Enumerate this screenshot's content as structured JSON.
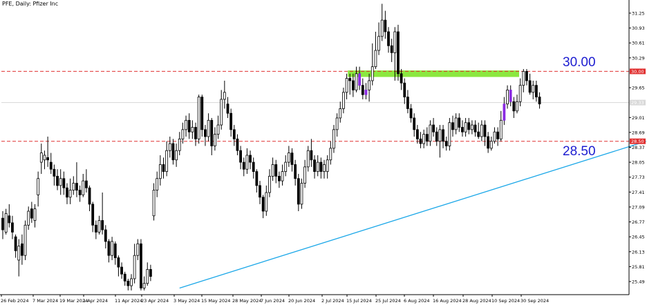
{
  "chart_data": {
    "type": "candlestick",
    "title": "PFE, Daily:  Pfizer Inc",
    "xlabel": "",
    "ylabel": "",
    "ylim": [
      25.2,
      31.6
    ],
    "y_ticks": [
      "31.25",
      "30.93",
      "30.61",
      "30.29",
      "30.00",
      "29.65",
      "29.33",
      "29.01",
      "28.69",
      "28.50",
      "28.37",
      "28.05",
      "27.73",
      "27.41",
      "27.09",
      "26.77",
      "26.45",
      "26.13",
      "25.81",
      "25.49"
    ],
    "x_ticks": [
      "26 Feb 2024",
      "7 Mar 2024",
      "19 Mar 2024",
      "1 Apr 2024",
      "11 Apr 2024",
      "23 Apr 2024",
      "3 May 2024",
      "15 May 2024",
      "28 May 2024",
      "7 Jun 2024",
      "20 Jun 2024",
      "2 Jul 2024",
      "15 Jul 2024",
      "25 Jul 2024",
      "6 Aug 2024",
      "16 Aug 2024",
      "28 Aug 2024",
      "10 Sep 2024",
      "30 Sep 2024"
    ],
    "levels": [
      {
        "value": 30.0,
        "label": "30.00",
        "axis_label": "30.00",
        "color": "#e03030"
      },
      {
        "value": 28.5,
        "label": "28.50",
        "axis_label": "28.50",
        "color": "#e03030"
      }
    ],
    "current_price": {
      "value": 29.33,
      "axis_label": "29.33"
    },
    "resistance_zone": {
      "from": 29.88,
      "to": 30.02,
      "color": "#7ee62a"
    },
    "trendline": {
      "from": {
        "x": 55,
        "y": 25.35
      },
      "to": {
        "x": 198,
        "y": 28.5
      },
      "color": "#1aa7e8"
    },
    "highlight_color": "#8a2be2",
    "highlighted_bars": [
      111,
      113,
      156,
      158
    ],
    "candles": [
      [
        26.85,
        26.6,
        27.0,
        26.4
      ],
      [
        26.55,
        26.95,
        27.05,
        26.5
      ],
      [
        26.9,
        26.75,
        27.15,
        26.65
      ],
      [
        26.75,
        26.55,
        26.9,
        26.4
      ],
      [
        26.45,
        26.15,
        26.5,
        26.0
      ],
      [
        25.95,
        26.25,
        26.4,
        25.6
      ],
      [
        26.3,
        26.05,
        26.5,
        25.85
      ],
      [
        26.05,
        26.7,
        26.8,
        25.95
      ],
      [
        26.7,
        27.0,
        27.1,
        26.6
      ],
      [
        27.05,
        26.85,
        27.2,
        26.75
      ],
      [
        26.8,
        27.05,
        27.15,
        26.65
      ],
      [
        27.35,
        27.7,
        27.85,
        27.1
      ],
      [
        28.05,
        28.25,
        28.45,
        27.8
      ],
      [
        28.1,
        28.2,
        28.3,
        27.9
      ],
      [
        28.15,
        28.1,
        28.6,
        27.95
      ],
      [
        28.05,
        27.9,
        28.25,
        27.8
      ],
      [
        27.9,
        27.75,
        28.0,
        27.55
      ],
      [
        27.75,
        27.55,
        27.9,
        27.45
      ],
      [
        27.55,
        27.7,
        27.9,
        27.35
      ],
      [
        27.7,
        27.5,
        27.85,
        27.35
      ],
      [
        27.5,
        27.3,
        27.6,
        27.15
      ],
      [
        27.3,
        27.45,
        27.7,
        27.15
      ],
      [
        27.45,
        27.6,
        27.75,
        27.35
      ],
      [
        27.6,
        27.45,
        28.05,
        27.3
      ],
      [
        27.45,
        27.35,
        27.55,
        27.2
      ],
      [
        27.35,
        27.65,
        27.8,
        27.3
      ],
      [
        27.65,
        27.5,
        27.9,
        27.4
      ],
      [
        27.5,
        27.15,
        27.55,
        27.0
      ],
      [
        27.15,
        26.7,
        27.2,
        26.55
      ],
      [
        26.7,
        26.55,
        26.8,
        26.4
      ],
      [
        26.55,
        26.8,
        26.9,
        26.5
      ],
      [
        26.8,
        26.6,
        27.4,
        26.5
      ],
      [
        26.6,
        26.35,
        26.7,
        26.2
      ],
      [
        26.35,
        26.05,
        26.4,
        25.9
      ],
      [
        26.05,
        26.35,
        26.45,
        25.95
      ],
      [
        26.3,
        26.0,
        26.35,
        25.85
      ],
      [
        26.0,
        25.8,
        26.05,
        25.6
      ],
      [
        25.8,
        25.65,
        25.9,
        25.55
      ],
      [
        25.65,
        25.5,
        25.7,
        25.4
      ],
      [
        25.5,
        25.4,
        25.55,
        25.3
      ],
      [
        25.4,
        25.55,
        25.65,
        25.3
      ],
      [
        25.55,
        26.05,
        26.3,
        25.45
      ],
      [
        26.05,
        26.3,
        26.4,
        25.95
      ],
      [
        26.3,
        25.35,
        26.4,
        25.3
      ],
      [
        25.35,
        25.45,
        25.6,
        25.3
      ],
      [
        25.45,
        25.75,
        25.9,
        25.4
      ],
      [
        25.75,
        25.6,
        25.85,
        25.5
      ],
      [
        26.9,
        27.45,
        27.6,
        26.8
      ],
      [
        27.45,
        27.7,
        27.85,
        27.3
      ],
      [
        27.7,
        28.0,
        28.2,
        27.55
      ],
      [
        28.0,
        27.85,
        28.15,
        27.7
      ],
      [
        27.85,
        28.3,
        28.5,
        27.75
      ],
      [
        28.3,
        28.45,
        28.6,
        28.15
      ],
      [
        28.45,
        28.1,
        28.55,
        28.0
      ],
      [
        28.1,
        28.3,
        28.45,
        27.95
      ],
      [
        28.3,
        28.55,
        28.7,
        28.2
      ],
      [
        28.55,
        28.75,
        28.9,
        28.45
      ],
      [
        28.75,
        28.95,
        29.05,
        28.6
      ],
      [
        28.95,
        28.7,
        29.1,
        28.55
      ],
      [
        28.7,
        28.8,
        28.95,
        28.55
      ],
      [
        28.8,
        28.55,
        28.9,
        28.4
      ],
      [
        28.55,
        29.45,
        29.5,
        28.45
      ],
      [
        29.45,
        28.75,
        29.5,
        28.6
      ],
      [
        28.75,
        28.6,
        28.85,
        28.4
      ],
      [
        28.6,
        28.95,
        29.1,
        28.5
      ],
      [
        28.95,
        28.4,
        29.0,
        28.2
      ],
      [
        28.4,
        28.65,
        28.8,
        28.3
      ],
      [
        28.65,
        28.85,
        29.05,
        28.55
      ],
      [
        28.85,
        29.4,
        29.6,
        28.75
      ],
      [
        29.4,
        29.55,
        29.8,
        29.2
      ],
      [
        29.3,
        29.1,
        29.45,
        29.0
      ],
      [
        29.1,
        28.75,
        29.2,
        28.6
      ],
      [
        28.75,
        28.55,
        28.85,
        28.4
      ],
      [
        28.55,
        28.3,
        28.65,
        28.2
      ],
      [
        28.3,
        28.05,
        28.4,
        27.9
      ],
      [
        28.05,
        27.9,
        28.15,
        27.75
      ],
      [
        27.9,
        28.2,
        28.35,
        27.8
      ],
      [
        28.2,
        28.05,
        28.3,
        27.9
      ],
      [
        28.05,
        27.85,
        28.15,
        27.7
      ],
      [
        27.85,
        27.55,
        27.9,
        27.4
      ],
      [
        27.55,
        27.3,
        27.65,
        27.15
      ],
      [
        27.3,
        27.0,
        27.35,
        26.85
      ],
      [
        27.0,
        27.4,
        27.55,
        26.9
      ],
      [
        27.4,
        27.75,
        27.9,
        27.3
      ],
      [
        27.75,
        28.0,
        28.15,
        27.65
      ],
      [
        28.0,
        27.75,
        28.1,
        27.6
      ],
      [
        27.75,
        27.65,
        27.85,
        27.5
      ],
      [
        27.65,
        27.85,
        28.0,
        27.55
      ],
      [
        27.85,
        28.05,
        28.2,
        27.75
      ],
      [
        28.05,
        28.25,
        28.4,
        27.95
      ],
      [
        28.25,
        28.0,
        28.35,
        27.85
      ],
      [
        28.0,
        27.7,
        28.1,
        27.55
      ],
      [
        27.7,
        27.15,
        27.8,
        27.0
      ],
      [
        27.15,
        27.6,
        27.7,
        27.05
      ],
      [
        27.6,
        27.95,
        28.1,
        27.5
      ],
      [
        27.95,
        28.3,
        28.4,
        27.85
      ],
      [
        28.3,
        28.1,
        28.55,
        27.95
      ],
      [
        28.1,
        27.85,
        28.2,
        27.7
      ],
      [
        27.85,
        28.05,
        28.2,
        27.75
      ],
      [
        28.05,
        27.85,
        28.15,
        27.7
      ],
      [
        27.85,
        28.0,
        28.1,
        27.7
      ],
      [
        27.85,
        28.1,
        28.2,
        27.7
      ],
      [
        28.1,
        28.35,
        28.5,
        28.0
      ],
      [
        28.35,
        28.75,
        28.85,
        28.25
      ],
      [
        28.75,
        29.0,
        29.1,
        28.6
      ],
      [
        29.0,
        29.2,
        29.35,
        28.9
      ],
      [
        29.2,
        29.55,
        29.65,
        29.1
      ],
      [
        29.55,
        29.85,
        29.95,
        29.4
      ],
      [
        29.85,
        29.8,
        29.95,
        29.5
      ],
      [
        29.8,
        29.6,
        29.95,
        29.45
      ],
      [
        29.6,
        29.95,
        30.1,
        29.55
      ],
      [
        29.95,
        29.7,
        30.1,
        29.6
      ],
      [
        29.7,
        29.5,
        29.85,
        29.4
      ],
      [
        29.5,
        29.6,
        29.75,
        29.4
      ],
      [
        29.6,
        29.8,
        29.95,
        29.35
      ],
      [
        29.8,
        30.1,
        30.6,
        29.7
      ],
      [
        30.1,
        30.45,
        30.85,
        30.05
      ],
      [
        30.45,
        30.75,
        31.05,
        30.35
      ],
      [
        30.75,
        31.1,
        31.45,
        30.65
      ],
      [
        31.1,
        30.85,
        31.3,
        30.7
      ],
      [
        30.85,
        30.55,
        30.95,
        30.4
      ],
      [
        30.55,
        30.4,
        30.7,
        30.2
      ],
      [
        30.4,
        30.85,
        30.95,
        29.8
      ],
      [
        30.85,
        29.95,
        31.0,
        29.8
      ],
      [
        29.95,
        29.75,
        30.05,
        29.6
      ],
      [
        29.75,
        29.45,
        29.85,
        29.3
      ],
      [
        29.45,
        29.2,
        29.6,
        29.1
      ],
      [
        29.2,
        29.0,
        29.3,
        28.9
      ],
      [
        29.0,
        28.75,
        29.1,
        28.6
      ],
      [
        28.75,
        28.55,
        28.85,
        28.45
      ],
      [
        28.55,
        28.45,
        28.7,
        28.35
      ],
      [
        28.45,
        28.65,
        28.75,
        28.35
      ],
      [
        28.65,
        28.5,
        28.8,
        28.4
      ],
      [
        28.5,
        28.85,
        28.95,
        28.4
      ],
      [
        28.85,
        28.7,
        29.0,
        28.6
      ],
      [
        28.7,
        28.5,
        28.8,
        28.4
      ],
      [
        28.5,
        28.75,
        28.85,
        28.15
      ],
      [
        28.75,
        28.5,
        28.85,
        28.35
      ],
      [
        28.5,
        28.4,
        28.6,
        28.3
      ],
      [
        28.4,
        28.9,
        29.0,
        28.3
      ],
      [
        28.9,
        28.75,
        29.05,
        28.6
      ],
      [
        28.75,
        29.0,
        29.1,
        28.65
      ],
      [
        29.0,
        28.8,
        29.1,
        28.7
      ],
      [
        28.8,
        28.7,
        28.95,
        28.6
      ],
      [
        28.7,
        28.9,
        29.0,
        28.6
      ],
      [
        28.9,
        28.75,
        29.0,
        28.65
      ],
      [
        28.75,
        28.85,
        28.95,
        28.65
      ],
      [
        28.85,
        28.7,
        28.95,
        28.6
      ],
      [
        28.7,
        28.6,
        28.9,
        28.55
      ],
      [
        28.6,
        28.85,
        28.95,
        28.5
      ],
      [
        28.85,
        28.6,
        28.95,
        28.4
      ],
      [
        28.6,
        28.35,
        28.7,
        28.25
      ],
      [
        28.35,
        28.5,
        28.6,
        28.3
      ],
      [
        28.5,
        28.7,
        28.8,
        28.45
      ],
      [
        28.7,
        28.55,
        28.8,
        28.4
      ],
      [
        28.55,
        28.95,
        29.15,
        28.5
      ],
      [
        28.95,
        29.3,
        29.45,
        28.85
      ],
      [
        29.3,
        29.6,
        29.7,
        29.2
      ],
      [
        29.6,
        29.35,
        29.7,
        29.25
      ],
      [
        29.35,
        29.15,
        29.45,
        29.0
      ],
      [
        29.15,
        29.35,
        29.5,
        29.1
      ],
      [
        29.35,
        29.7,
        29.85,
        29.25
      ],
      [
        29.7,
        30.0,
        30.05,
        29.55
      ],
      [
        30.0,
        29.8,
        30.05,
        29.7
      ],
      [
        29.8,
        29.55,
        29.95,
        29.5
      ],
      [
        29.55,
        29.7,
        29.8,
        29.4
      ],
      [
        29.7,
        29.45,
        29.8,
        29.35
      ],
      [
        29.45,
        29.3,
        29.55,
        29.2
      ]
    ]
  }
}
